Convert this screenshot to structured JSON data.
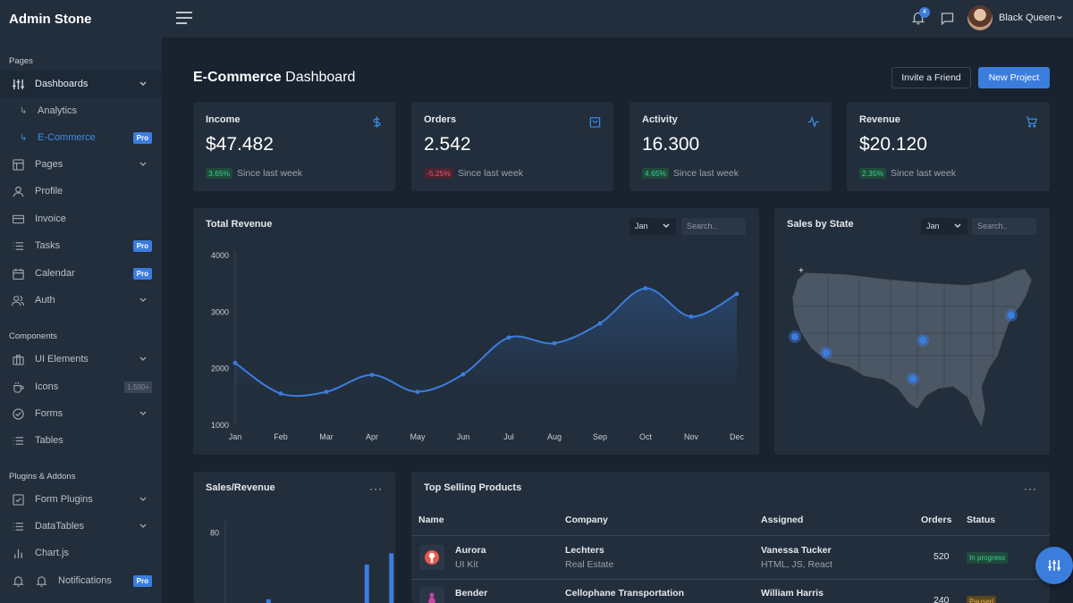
{
  "app": {
    "brand": "Admin Stone"
  },
  "sidebar": {
    "sections": [
      "Pages",
      "Components",
      "Plugins & Addons"
    ],
    "items": [
      {
        "label": "Dashboards",
        "icon": "sliders-icon",
        "chevron": true
      },
      {
        "label": "Analytics",
        "sub": true
      },
      {
        "label": "E-Commerce",
        "sub": true,
        "badge": "Pro"
      },
      {
        "label": "Pages",
        "icon": "layout-icon",
        "chevron": true
      },
      {
        "label": "Profile",
        "icon": "user-icon"
      },
      {
        "label": "Invoice",
        "icon": "credit-card-icon"
      },
      {
        "label": "Tasks",
        "icon": "list-icon",
        "badge": "Pro"
      },
      {
        "label": "Calendar",
        "icon": "calendar-icon",
        "badge": "Pro"
      },
      {
        "label": "Auth",
        "icon": "users-icon",
        "chevron": true
      },
      {
        "label": "UI Elements",
        "icon": "briefcase-icon",
        "chevron": true
      },
      {
        "label": "Icons",
        "icon": "coffee-icon",
        "badge": "1.500+"
      },
      {
        "label": "Forms",
        "icon": "check-circle-icon",
        "chevron": true
      },
      {
        "label": "Tables",
        "icon": "list-icon"
      },
      {
        "label": "Form Plugins",
        "icon": "check-square-icon",
        "chevron": true
      },
      {
        "label": "DataTables",
        "icon": "list-icon",
        "chevron": true
      },
      {
        "label": "Chart.js",
        "icon": "bar-chart-icon"
      },
      {
        "label": "Notifications",
        "icon": "bell-icon",
        "badge": "Pro"
      }
    ]
  },
  "topbar": {
    "notification_count": "4",
    "user_name": "Black Queen"
  },
  "header": {
    "title_bold": "E-Commerce",
    "title_rest": " Dashboard",
    "invite_label": "Invite a Friend",
    "new_project_label": "New Project"
  },
  "stats": [
    {
      "title": "Income",
      "value": "$47.482",
      "change": "3.65%",
      "since": "Since last week",
      "icon": "dollar-icon"
    },
    {
      "title": "Orders",
      "value": "2.542",
      "change": "-5.25%",
      "since": "Since last week",
      "icon": "shopping-bag-icon"
    },
    {
      "title": "Activity",
      "value": "16.300",
      "change": "4.65%",
      "since": "Since last week",
      "icon": "activity-icon"
    },
    {
      "title": "Revenue",
      "value": "$20.120",
      "change": "2.35%",
      "since": "Since last week",
      "icon": "shopping-cart-icon"
    }
  ],
  "total_revenue": {
    "title": "Total Revenue",
    "select": "Jan",
    "search_placeholder": "Search.."
  },
  "sales_by_state": {
    "title": "Sales by State",
    "select": "Jan",
    "search_placeholder": "Search..",
    "zoom_in": "+",
    "zoom_out": "−"
  },
  "sales_revenue": {
    "title": "Sales/Revenue",
    "more": "···"
  },
  "top_products": {
    "title": "Top Selling Products",
    "more": "···",
    "columns": [
      "Name",
      "Company",
      "Assigned",
      "Orders",
      "Status"
    ],
    "rows": [
      {
        "name": "Aurora",
        "type": "UI Kit",
        "company": "Lechters",
        "company_type": "Real Estate",
        "assigned": "Vanessa Tucker",
        "skills": "HTML, JS, React",
        "orders": "520",
        "status": "In progress"
      },
      {
        "name": "Bender",
        "type": "",
        "company": "Cellophane Transportation",
        "company_type": "",
        "assigned": "William Harris",
        "skills": "",
        "orders": "240",
        "status": "Paused"
      }
    ]
  },
  "chart_data": [
    {
      "type": "line",
      "title": "Total Revenue",
      "x": [
        "Jan",
        "Feb",
        "Mar",
        "Apr",
        "May",
        "Jun",
        "Jul",
        "Aug",
        "Sep",
        "Oct",
        "Nov",
        "Dec"
      ],
      "series": [
        {
          "values": [
            2100,
            1560,
            1590,
            1890,
            1590,
            1900,
            2550,
            2450,
            2800,
            3420,
            2920,
            3320
          ]
        }
      ],
      "yticks": [
        1000,
        2000,
        3000,
        4000
      ],
      "ylim": [
        1000,
        4000
      ],
      "grid": false
    },
    {
      "type": "bar",
      "title": "Sales/Revenue",
      "yticks": [
        80
      ],
      "series": [
        {
          "values": [
            null,
            15,
            null,
            null,
            null,
            49,
            60,
            81
          ]
        }
      ],
      "ylim": [
        0,
        90
      ]
    }
  ],
  "colors": {
    "accent": "#3b7ddd",
    "success": "#3ccf8e",
    "danger": "#e8596e",
    "warning": "#f3b545",
    "card": "#222e3c",
    "background": "#19222f"
  }
}
